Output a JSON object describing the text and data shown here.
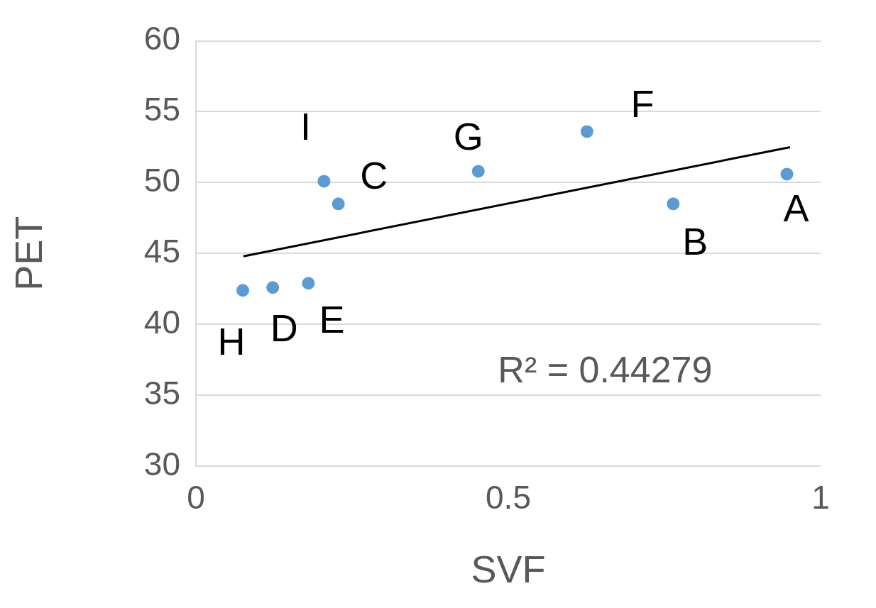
{
  "chart_data": {
    "type": "scatter",
    "xlabel": "SVF",
    "ylabel": "PET",
    "xlim": [
      0,
      1
    ],
    "xticks": [
      0,
      0.5,
      1
    ],
    "ylim": [
      30,
      60
    ],
    "yticks": [
      30,
      35,
      40,
      45,
      50,
      55,
      60
    ],
    "grid": "y",
    "series": [
      {
        "marker": "circle",
        "color": "#5b9bd5",
        "x": [
          0.946,
          0.764,
          0.228,
          0.123,
          0.18,
          0.626,
          0.452,
          0.075,
          0.205
        ],
        "values": [
          50.6,
          48.5,
          48.5,
          42.6,
          42.9,
          53.6,
          50.8,
          42.4,
          50.1
        ]
      },
      {
        "type": "line",
        "color": "#000000",
        "x": [
          0.076,
          0.951
        ],
        "values": [
          44.8,
          52.5
        ]
      }
    ],
    "annotations": [
      {
        "text": "A",
        "x": 0.946,
        "y": 50.6
      },
      {
        "text": "B",
        "x": 0.764,
        "y": 48.5
      },
      {
        "text": "C",
        "x": 0.228,
        "y": 48.5
      },
      {
        "text": "D",
        "x": 0.123,
        "y": 42.6
      },
      {
        "text": "E",
        "x": 0.18,
        "y": 42.9
      },
      {
        "text": "F",
        "x": 0.626,
        "y": 53.6
      },
      {
        "text": "G",
        "x": 0.452,
        "y": 50.8
      },
      {
        "text": "H",
        "x": 0.075,
        "y": 42.4
      },
      {
        "text": "I",
        "x": 0.205,
        "y": 50.1
      },
      "R² = 0.44279"
    ]
  }
}
